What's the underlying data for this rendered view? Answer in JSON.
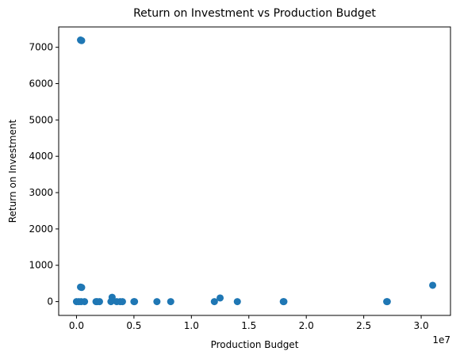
{
  "chart_data": {
    "type": "scatter",
    "title": "Return on Investment vs Production Budget",
    "xlabel": "Production Budget",
    "ylabel": "Return on Investment",
    "x_offset_label": "1e7",
    "xlim": [
      -1550000,
      32550000
    ],
    "ylim": [
      -380,
      7560
    ],
    "x_ticks": [
      0,
      5000000,
      10000000,
      15000000,
      20000000,
      25000000,
      30000000
    ],
    "x_tick_labels": [
      "0.0",
      "0.5",
      "1.0",
      "1.5",
      "2.0",
      "2.5",
      "3.0"
    ],
    "y_ticks": [
      0,
      1000,
      2000,
      3000,
      4000,
      5000,
      6000,
      7000
    ],
    "y_tick_labels": [
      "0",
      "1000",
      "2000",
      "3000",
      "4000",
      "5000",
      "6000",
      "7000"
    ],
    "marker_color": "#1f77b4",
    "grid": false,
    "legend": "none",
    "points": [
      {
        "x": 0,
        "y": 0
      },
      {
        "x": 200000,
        "y": 0
      },
      {
        "x": 350000,
        "y": 7200
      },
      {
        "x": 400000,
        "y": 7190
      },
      {
        "x": 450000,
        "y": 7185
      },
      {
        "x": 350000,
        "y": 400
      },
      {
        "x": 400000,
        "y": 395
      },
      {
        "x": 450000,
        "y": 390
      },
      {
        "x": 400000,
        "y": 0
      },
      {
        "x": 700000,
        "y": 0
      },
      {
        "x": 1700000,
        "y": 0
      },
      {
        "x": 1800000,
        "y": 0
      },
      {
        "x": 2000000,
        "y": 0
      },
      {
        "x": 3000000,
        "y": 0
      },
      {
        "x": 3100000,
        "y": 120
      },
      {
        "x": 3500000,
        "y": 0
      },
      {
        "x": 3800000,
        "y": 0
      },
      {
        "x": 4000000,
        "y": 0
      },
      {
        "x": 5000000,
        "y": 0
      },
      {
        "x": 5050000,
        "y": 0
      },
      {
        "x": 7000000,
        "y": 0
      },
      {
        "x": 8200000,
        "y": 0
      },
      {
        "x": 12000000,
        "y": 0
      },
      {
        "x": 12500000,
        "y": 100
      },
      {
        "x": 14000000,
        "y": 0
      },
      {
        "x": 18000000,
        "y": 0
      },
      {
        "x": 18050000,
        "y": 0
      },
      {
        "x": 27000000,
        "y": 0
      },
      {
        "x": 27050000,
        "y": 0
      },
      {
        "x": 31000000,
        "y": 450
      }
    ]
  }
}
